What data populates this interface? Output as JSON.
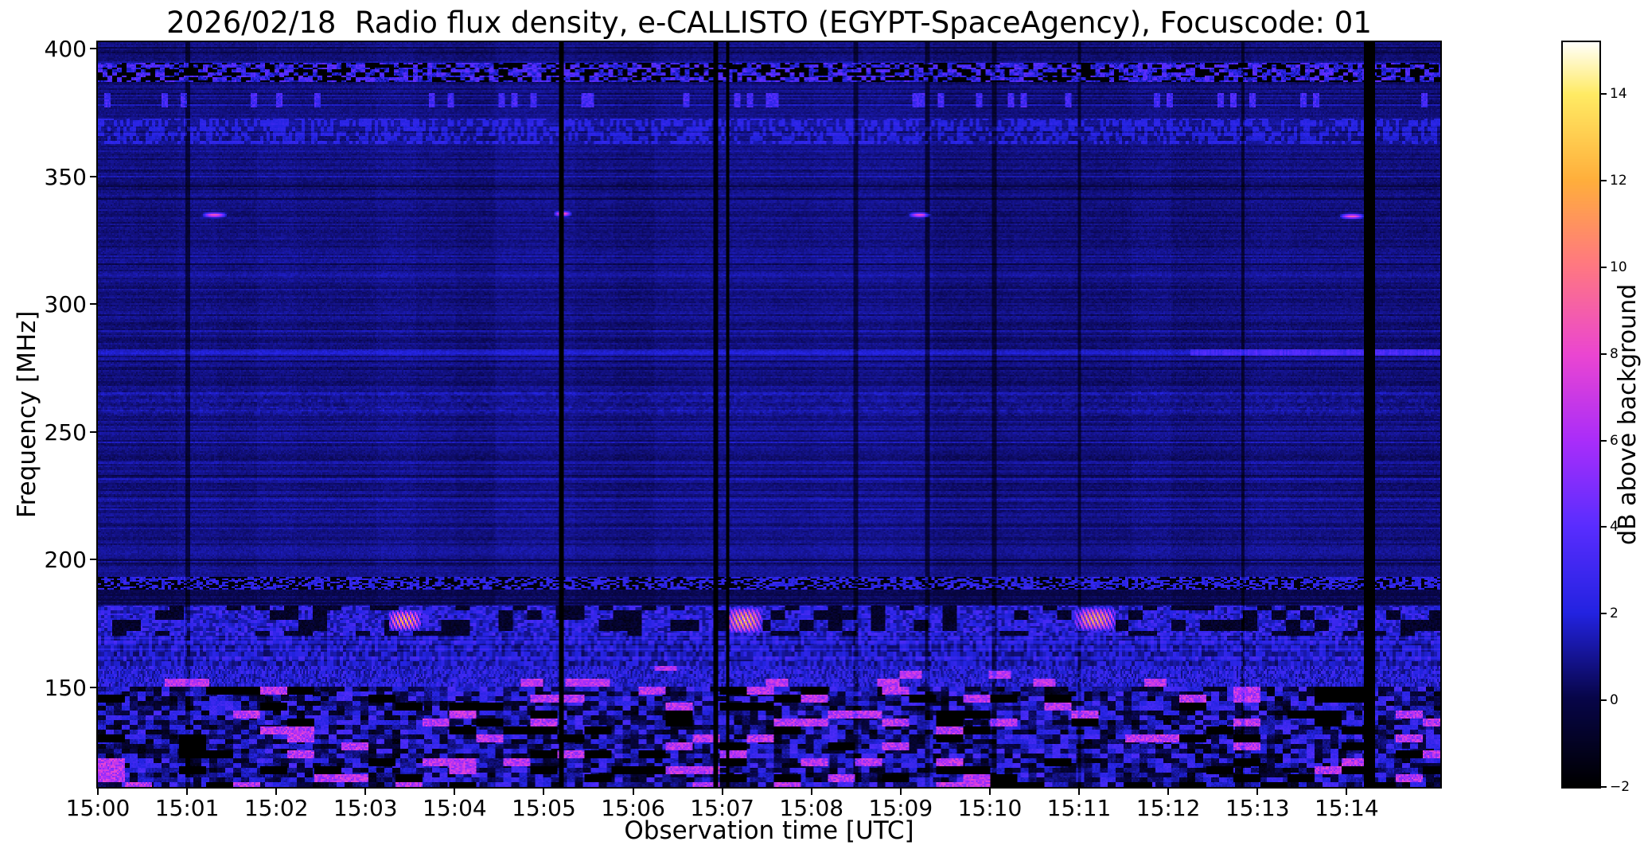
{
  "chart_data": {
    "type": "heatmap",
    "title": "2026/02/18  Radio flux density, e-CALLISTO (EGYPT-SpaceAgency), Focuscode: 01",
    "xlabel": "Observation time [UTC]",
    "ylabel": "Frequency [MHz]",
    "colorbar_label": "dB above background",
    "x_ticks": [
      "15:00",
      "15:01",
      "15:02",
      "15:03",
      "15:04",
      "15:05",
      "15:06",
      "15:07",
      "15:08",
      "15:09",
      "15:10",
      "15:11",
      "15:12",
      "15:13",
      "15:14"
    ],
    "x_tick_minutes": [
      0,
      1,
      2,
      3,
      4,
      5,
      6,
      7,
      8,
      9,
      10,
      11,
      12,
      13,
      14
    ],
    "x_range_minutes": [
      0,
      15.05
    ],
    "y_ticks": [
      400,
      350,
      300,
      250,
      200,
      150
    ],
    "y_range_mhz": [
      111,
      402.5
    ],
    "value_range_db": [
      -2,
      15.2
    ],
    "colorbar_ticks": [
      -2,
      0,
      2,
      4,
      6,
      8,
      10,
      12,
      14
    ],
    "grid": false,
    "colormap_stops": [
      {
        "pos": 0.0,
        "color": "#000000"
      },
      {
        "pos": 0.12,
        "color": "#08064a"
      },
      {
        "pos": 0.233,
        "color": "#2323e1"
      },
      {
        "pos": 0.35,
        "color": "#5a2dff"
      },
      {
        "pos": 0.465,
        "color": "#aa2dfa"
      },
      {
        "pos": 0.58,
        "color": "#eb46d2"
      },
      {
        "pos": 0.7,
        "color": "#ff7882"
      },
      {
        "pos": 0.815,
        "color": "#ffaf3c"
      },
      {
        "pos": 0.93,
        "color": "#ffeb64"
      },
      {
        "pos": 1.0,
        "color": "#fffffa"
      }
    ],
    "background_level_db": 0.7,
    "features": {
      "bursts_175mhz": [
        {
          "t_start": 3.25,
          "t_end": 3.62,
          "f_low": 172,
          "f_high": 180,
          "peak_db": 13
        },
        {
          "t_start": 7.05,
          "t_end": 7.45,
          "f_low": 171,
          "f_high": 181,
          "peak_db": 14
        },
        {
          "t_start": 10.95,
          "t_end": 11.42,
          "f_low": 172,
          "f_high": 181,
          "peak_db": 13
        }
      ],
      "narrowband_335mhz": [
        {
          "t_start": 1.15,
          "t_end": 1.45,
          "f_center": 335,
          "peak_db": 8.5
        },
        {
          "t_start": 5.1,
          "t_end": 5.32,
          "f_center": 335.5,
          "peak_db": 9
        },
        {
          "t_start": 9.08,
          "t_end": 9.35,
          "f_center": 335,
          "peak_db": 8
        },
        {
          "t_start": 13.92,
          "t_end": 14.22,
          "f_center": 334.5,
          "peak_db": 8.5
        }
      ],
      "horizontal_line_mhz": 281,
      "rfi_band_390mhz": [
        387,
        395
      ],
      "sparse_band_380mhz": [
        377,
        383
      ],
      "textured_band_370mhz": [
        363,
        373
      ],
      "textured_band_262mhz": [
        256,
        266
      ],
      "checker_band_190mhz": [
        188,
        193
      ],
      "dark_lane_185mhz": [
        182,
        188
      ],
      "active_band_175mhz": [
        170,
        182
      ],
      "dash_band_165mhz": [
        158,
        170
      ],
      "noisy_band_top_mhz": 158,
      "chaotic_below_mhz": 150,
      "dropouts_strong": [
        {
          "t": 5.2,
          "w": 0.06
        },
        {
          "t": 6.93,
          "w": 0.05
        },
        {
          "t": 7.06,
          "w": 0.05
        },
        {
          "t": 14.27,
          "w": 0.13
        }
      ],
      "dropouts_faint": [
        1.0,
        8.5,
        9.3,
        10.05,
        11.0,
        12.85
      ]
    }
  }
}
